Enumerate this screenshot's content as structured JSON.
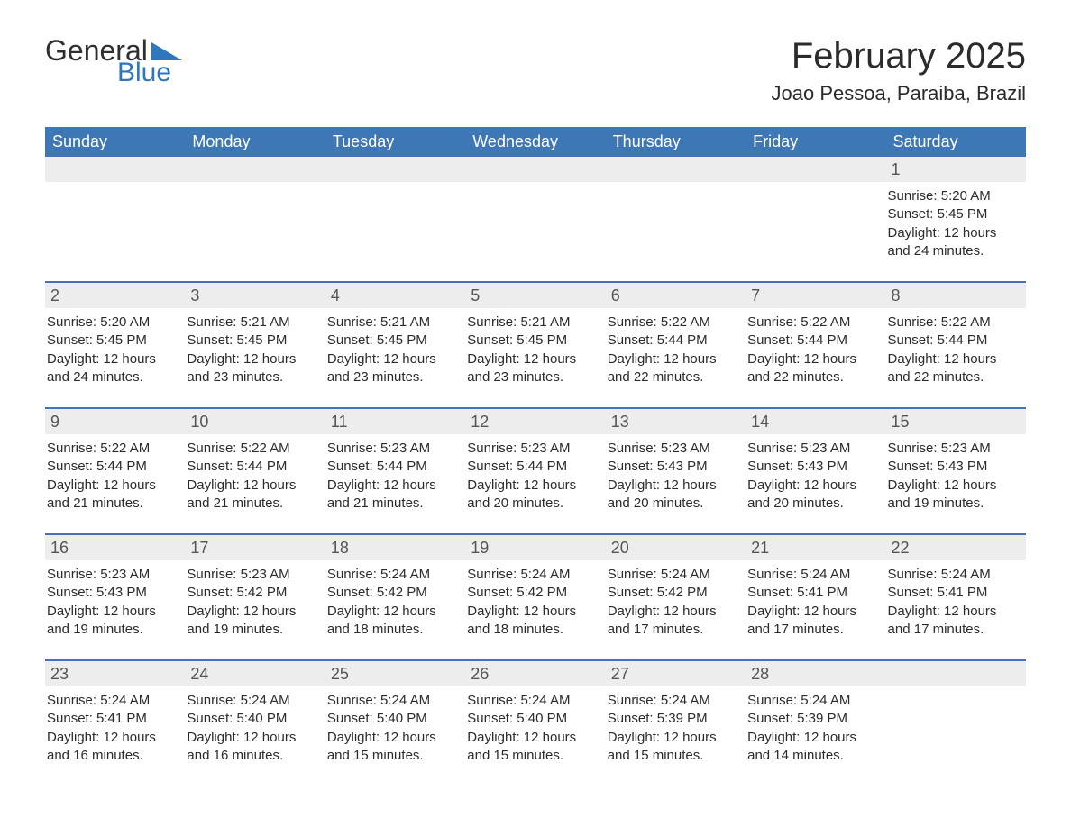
{
  "logo": {
    "text1": "General",
    "text2": "Blue",
    "color_text1": "#2f2f2f",
    "color_text2": "#2f77bd"
  },
  "header": {
    "title": "February 2025",
    "subtitle": "Joao Pessoa, Paraiba, Brazil"
  },
  "calendar": {
    "header_bg": "#3d77b6",
    "header_fg": "#ffffff",
    "daynum_bg": "#ededed",
    "daynum_fg": "#555555",
    "rule_color": "#3d77b6",
    "text_color": "#2b2b2b",
    "font_family": "Arial",
    "day_names": [
      "Sunday",
      "Monday",
      "Tuesday",
      "Wednesday",
      "Thursday",
      "Friday",
      "Saturday"
    ],
    "weeks": [
      [
        {
          "day": "",
          "sunrise": "",
          "sunset": "",
          "daylight": ""
        },
        {
          "day": "",
          "sunrise": "",
          "sunset": "",
          "daylight": ""
        },
        {
          "day": "",
          "sunrise": "",
          "sunset": "",
          "daylight": ""
        },
        {
          "day": "",
          "sunrise": "",
          "sunset": "",
          "daylight": ""
        },
        {
          "day": "",
          "sunrise": "",
          "sunset": "",
          "daylight": ""
        },
        {
          "day": "",
          "sunrise": "",
          "sunset": "",
          "daylight": ""
        },
        {
          "day": "1",
          "sunrise": "Sunrise: 5:20 AM",
          "sunset": "Sunset: 5:45 PM",
          "daylight": "Daylight: 12 hours and 24 minutes."
        }
      ],
      [
        {
          "day": "2",
          "sunrise": "Sunrise: 5:20 AM",
          "sunset": "Sunset: 5:45 PM",
          "daylight": "Daylight: 12 hours and 24 minutes."
        },
        {
          "day": "3",
          "sunrise": "Sunrise: 5:21 AM",
          "sunset": "Sunset: 5:45 PM",
          "daylight": "Daylight: 12 hours and 23 minutes."
        },
        {
          "day": "4",
          "sunrise": "Sunrise: 5:21 AM",
          "sunset": "Sunset: 5:45 PM",
          "daylight": "Daylight: 12 hours and 23 minutes."
        },
        {
          "day": "5",
          "sunrise": "Sunrise: 5:21 AM",
          "sunset": "Sunset: 5:45 PM",
          "daylight": "Daylight: 12 hours and 23 minutes."
        },
        {
          "day": "6",
          "sunrise": "Sunrise: 5:22 AM",
          "sunset": "Sunset: 5:44 PM",
          "daylight": "Daylight: 12 hours and 22 minutes."
        },
        {
          "day": "7",
          "sunrise": "Sunrise: 5:22 AM",
          "sunset": "Sunset: 5:44 PM",
          "daylight": "Daylight: 12 hours and 22 minutes."
        },
        {
          "day": "8",
          "sunrise": "Sunrise: 5:22 AM",
          "sunset": "Sunset: 5:44 PM",
          "daylight": "Daylight: 12 hours and 22 minutes."
        }
      ],
      [
        {
          "day": "9",
          "sunrise": "Sunrise: 5:22 AM",
          "sunset": "Sunset: 5:44 PM",
          "daylight": "Daylight: 12 hours and 21 minutes."
        },
        {
          "day": "10",
          "sunrise": "Sunrise: 5:22 AM",
          "sunset": "Sunset: 5:44 PM",
          "daylight": "Daylight: 12 hours and 21 minutes."
        },
        {
          "day": "11",
          "sunrise": "Sunrise: 5:23 AM",
          "sunset": "Sunset: 5:44 PM",
          "daylight": "Daylight: 12 hours and 21 minutes."
        },
        {
          "day": "12",
          "sunrise": "Sunrise: 5:23 AM",
          "sunset": "Sunset: 5:44 PM",
          "daylight": "Daylight: 12 hours and 20 minutes."
        },
        {
          "day": "13",
          "sunrise": "Sunrise: 5:23 AM",
          "sunset": "Sunset: 5:43 PM",
          "daylight": "Daylight: 12 hours and 20 minutes."
        },
        {
          "day": "14",
          "sunrise": "Sunrise: 5:23 AM",
          "sunset": "Sunset: 5:43 PM",
          "daylight": "Daylight: 12 hours and 20 minutes."
        },
        {
          "day": "15",
          "sunrise": "Sunrise: 5:23 AM",
          "sunset": "Sunset: 5:43 PM",
          "daylight": "Daylight: 12 hours and 19 minutes."
        }
      ],
      [
        {
          "day": "16",
          "sunrise": "Sunrise: 5:23 AM",
          "sunset": "Sunset: 5:43 PM",
          "daylight": "Daylight: 12 hours and 19 minutes."
        },
        {
          "day": "17",
          "sunrise": "Sunrise: 5:23 AM",
          "sunset": "Sunset: 5:42 PM",
          "daylight": "Daylight: 12 hours and 19 minutes."
        },
        {
          "day": "18",
          "sunrise": "Sunrise: 5:24 AM",
          "sunset": "Sunset: 5:42 PM",
          "daylight": "Daylight: 12 hours and 18 minutes."
        },
        {
          "day": "19",
          "sunrise": "Sunrise: 5:24 AM",
          "sunset": "Sunset: 5:42 PM",
          "daylight": "Daylight: 12 hours and 18 minutes."
        },
        {
          "day": "20",
          "sunrise": "Sunrise: 5:24 AM",
          "sunset": "Sunset: 5:42 PM",
          "daylight": "Daylight: 12 hours and 17 minutes."
        },
        {
          "day": "21",
          "sunrise": "Sunrise: 5:24 AM",
          "sunset": "Sunset: 5:41 PM",
          "daylight": "Daylight: 12 hours and 17 minutes."
        },
        {
          "day": "22",
          "sunrise": "Sunrise: 5:24 AM",
          "sunset": "Sunset: 5:41 PM",
          "daylight": "Daylight: 12 hours and 17 minutes."
        }
      ],
      [
        {
          "day": "23",
          "sunrise": "Sunrise: 5:24 AM",
          "sunset": "Sunset: 5:41 PM",
          "daylight": "Daylight: 12 hours and 16 minutes."
        },
        {
          "day": "24",
          "sunrise": "Sunrise: 5:24 AM",
          "sunset": "Sunset: 5:40 PM",
          "daylight": "Daylight: 12 hours and 16 minutes."
        },
        {
          "day": "25",
          "sunrise": "Sunrise: 5:24 AM",
          "sunset": "Sunset: 5:40 PM",
          "daylight": "Daylight: 12 hours and 15 minutes."
        },
        {
          "day": "26",
          "sunrise": "Sunrise: 5:24 AM",
          "sunset": "Sunset: 5:40 PM",
          "daylight": "Daylight: 12 hours and 15 minutes."
        },
        {
          "day": "27",
          "sunrise": "Sunrise: 5:24 AM",
          "sunset": "Sunset: 5:39 PM",
          "daylight": "Daylight: 12 hours and 15 minutes."
        },
        {
          "day": "28",
          "sunrise": "Sunrise: 5:24 AM",
          "sunset": "Sunset: 5:39 PM",
          "daylight": "Daylight: 12 hours and 14 minutes."
        },
        {
          "day": "",
          "sunrise": "",
          "sunset": "",
          "daylight": ""
        }
      ]
    ]
  }
}
